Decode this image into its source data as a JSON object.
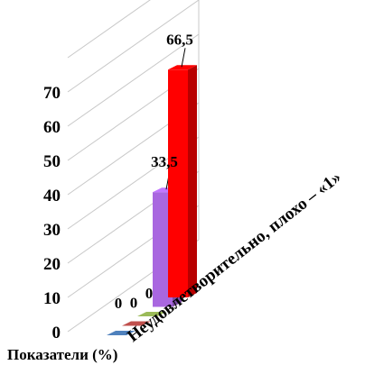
{
  "chart_data": {
    "type": "bar",
    "three_d": true,
    "ylabel": "Показатели (%)",
    "ylim": [
      0,
      80
    ],
    "yticks": [
      0,
      10,
      20,
      30,
      40,
      50,
      60,
      70
    ],
    "categories": [
      "Неудовлетворительно, плохо – «1»"
    ],
    "series": [
      {
        "values": [
          0
        ],
        "label": "0",
        "color": "#4f81bd"
      },
      {
        "values": [
          0
        ],
        "label": "0",
        "color": "#c0504d"
      },
      {
        "values": [
          0
        ],
        "label": "0",
        "color": "#9bbb59"
      },
      {
        "values": [
          33.5
        ],
        "label": "33,5",
        "color": "#a967e0"
      },
      {
        "values": [
          66.5
        ],
        "label": "66,5",
        "color": "#ff0000"
      }
    ],
    "grid": true
  }
}
